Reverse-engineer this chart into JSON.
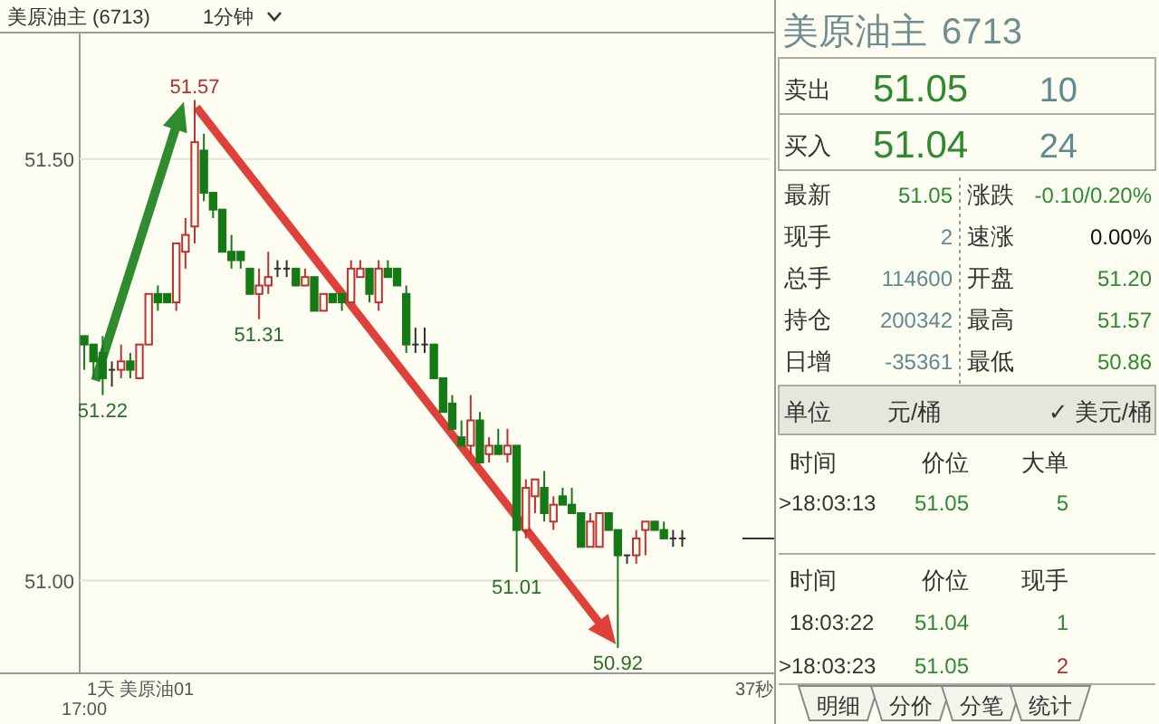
{
  "chart_data": [
    {
      "type": "candlestick",
      "title": "美原油主 (6713)",
      "subtitle": "1分钟",
      "categories": [
        "17:00",
        null,
        null,
        null,
        null,
        null,
        null,
        null,
        null,
        null,
        null,
        null,
        null,
        null,
        null,
        null,
        null,
        null,
        null,
        null,
        null,
        null,
        null,
        null,
        null,
        null,
        null,
        null,
        null,
        null,
        null,
        null,
        null,
        null,
        null,
        null,
        null,
        null,
        null,
        null,
        null,
        null,
        null,
        null,
        null,
        null,
        null,
        null,
        null,
        null,
        null,
        null,
        null,
        null,
        null,
        null,
        null,
        null,
        null,
        null,
        null,
        null,
        null,
        null,
        null,
        null
      ],
      "ohlc": [
        [
          51.29,
          51.29,
          51.25,
          51.28
        ],
        [
          51.28,
          51.28,
          51.24,
          51.26
        ],
        [
          51.27,
          51.29,
          51.22,
          51.24
        ],
        [
          51.25,
          51.26,
          51.23,
          51.25
        ],
        [
          51.25,
          51.28,
          51.24,
          51.26
        ],
        [
          51.26,
          51.27,
          51.24,
          51.25
        ],
        [
          51.24,
          51.28,
          51.24,
          51.28
        ],
        [
          51.28,
          51.34,
          51.28,
          51.34
        ],
        [
          51.34,
          51.35,
          51.32,
          51.33
        ],
        [
          51.34,
          51.34,
          51.33,
          51.33
        ],
        [
          51.33,
          51.4,
          51.32,
          51.4
        ],
        [
          51.39,
          51.43,
          51.37,
          51.41
        ],
        [
          51.42,
          51.57,
          51.4,
          51.52
        ],
        [
          51.51,
          51.53,
          51.45,
          51.46
        ],
        [
          51.46,
          51.46,
          51.43,
          51.44
        ],
        [
          51.44,
          51.44,
          51.39,
          51.39
        ],
        [
          51.39,
          51.41,
          51.37,
          51.38
        ],
        [
          51.39,
          51.39,
          51.37,
          51.38
        ],
        [
          51.37,
          51.37,
          51.34,
          51.34
        ],
        [
          51.34,
          51.37,
          51.31,
          51.35
        ],
        [
          51.35,
          51.39,
          51.34,
          51.36
        ],
        [
          51.37,
          51.38,
          51.36,
          51.37
        ],
        [
          51.37,
          51.38,
          51.36,
          51.37
        ],
        [
          51.37,
          51.37,
          51.35,
          51.35
        ],
        [
          51.35,
          51.37,
          51.35,
          51.36
        ],
        [
          51.36,
          51.36,
          51.32,
          51.32
        ],
        [
          51.32,
          51.34,
          51.32,
          51.34
        ],
        [
          51.34,
          51.34,
          51.33,
          51.33
        ],
        [
          51.34,
          51.34,
          51.32,
          51.33
        ],
        [
          51.33,
          51.38,
          51.33,
          51.37
        ],
        [
          51.36,
          51.38,
          51.36,
          51.37
        ],
        [
          51.37,
          51.37,
          51.33,
          51.34
        ],
        [
          51.33,
          51.38,
          51.32,
          51.37
        ],
        [
          51.37,
          51.38,
          51.36,
          51.36
        ],
        [
          51.37,
          51.37,
          51.35,
          51.35
        ],
        [
          51.34,
          51.35,
          51.27,
          51.28
        ],
        [
          51.28,
          51.3,
          51.27,
          51.28
        ],
        [
          51.28,
          51.3,
          51.27,
          51.28
        ],
        [
          51.28,
          51.28,
          51.24,
          51.24
        ],
        [
          51.24,
          51.24,
          51.2,
          51.2
        ],
        [
          51.21,
          51.22,
          51.18,
          51.18
        ],
        [
          51.17,
          51.19,
          51.16,
          51.16
        ],
        [
          51.16,
          51.22,
          51.15,
          51.19
        ],
        [
          51.19,
          51.2,
          51.14,
          51.14
        ],
        [
          51.15,
          51.17,
          51.14,
          51.16
        ],
        [
          51.16,
          51.18,
          51.15,
          51.15
        ],
        [
          51.15,
          51.18,
          51.14,
          51.16
        ],
        [
          51.16,
          51.16,
          51.01,
          51.06
        ],
        [
          51.06,
          51.12,
          51.05,
          51.11
        ],
        [
          51.1,
          51.12,
          51.08,
          51.12
        ],
        [
          51.11,
          51.13,
          51.07,
          51.08
        ],
        [
          51.07,
          51.1,
          51.06,
          51.09
        ],
        [
          51.1,
          51.11,
          51.09,
          51.09
        ],
        [
          51.09,
          51.11,
          51.08,
          51.08
        ],
        [
          51.08,
          51.08,
          51.04,
          51.04
        ],
        [
          51.04,
          51.08,
          51.04,
          51.07
        ],
        [
          51.04,
          51.08,
          51.04,
          51.08
        ],
        [
          51.08,
          51.08,
          51.06,
          51.06
        ],
        [
          51.06,
          51.06,
          50.92,
          51.03
        ],
        [
          51.03,
          51.03,
          51.02,
          51.03
        ],
        [
          51.03,
          51.06,
          51.02,
          51.05
        ],
        [
          51.06,
          51.07,
          51.03,
          51.07
        ],
        [
          51.07,
          51.07,
          51.06,
          51.06
        ],
        [
          51.06,
          51.07,
          51.05,
          51.05
        ],
        [
          51.05,
          51.06,
          51.04,
          51.05
        ],
        [
          51.05,
          51.06,
          51.04,
          51.05
        ]
      ],
      "ylim": [
        50.89,
        51.65
      ],
      "yticks": [
        {
          "value": 51.5,
          "label": "51.50"
        },
        {
          "value": 51.0,
          "label": "51.00"
        }
      ],
      "grid": "y",
      "annotations": [
        {
          "text": "51.57",
          "y": 51.57
        },
        {
          "text": "51.31",
          "y": 51.31
        },
        {
          "text": "51.22",
          "y": 51.22
        },
        {
          "text": "51.01",
          "y": 51.01
        },
        {
          "text": "50.92",
          "y": 50.92
        },
        "1天",
        "美原油01",
        "37秒"
      ]
    },
    {
      "type": "other",
      "title": "美原油主",
      "subtitle": "6713",
      "annotations": [
        "卖出",
        "51.05",
        "10",
        "买入",
        "51.04",
        "24",
        "最新",
        "51.05",
        "涨跌",
        "-0.10/0.20%",
        "现手",
        "2",
        "速涨",
        "0.00%",
        "总手",
        "114600",
        "开盘",
        "51.20",
        "持仓",
        "200342",
        "最高",
        "51.57",
        "日增",
        "-35361",
        "最低",
        "50.86",
        "单位",
        "元/桶",
        "✓ 美元/桶",
        "时间",
        "价位",
        "大单",
        ">18:03:13",
        "51.05",
        "5",
        "时间",
        "价位",
        "现手",
        "18:03:22",
        "51.04",
        "1",
        ">18:03:23",
        "51.05",
        "2",
        "明细",
        "分价",
        "分笔",
        "统计"
      ]
    }
  ]
}
